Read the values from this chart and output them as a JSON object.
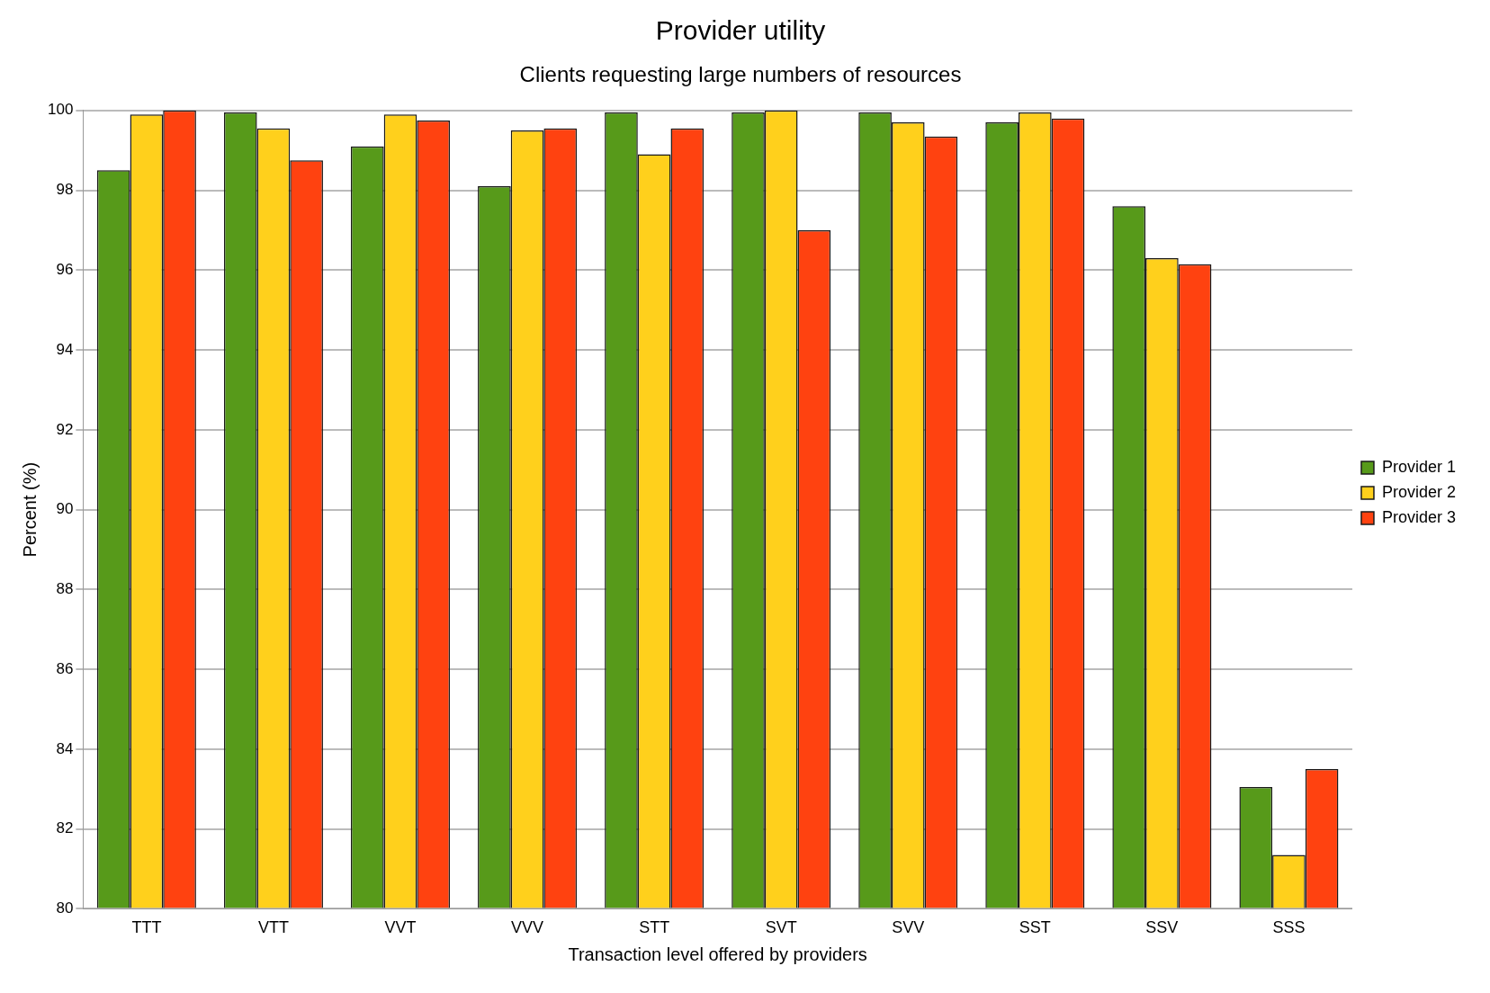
{
  "chart_data": {
    "type": "bar",
    "title": "Provider utility",
    "subtitle": "Clients requesting large numbers of resources",
    "xlabel": "Transaction level offered by providers",
    "ylabel": "Percent (%)",
    "categories": [
      "TTT",
      "VTT",
      "VVT",
      "VVV",
      "STT",
      "SVT",
      "SVV",
      "SST",
      "SSV",
      "SSS"
    ],
    "series": [
      {
        "name": "Provider 1",
        "color": "#579a1a",
        "values": [
          98.5,
          99.95,
          99.1,
          98.1,
          99.95,
          99.95,
          99.95,
          99.7,
          97.6,
          83.05
        ]
      },
      {
        "name": "Provider 2",
        "color": "#ffd01c",
        "values": [
          99.9,
          99.55,
          99.9,
          99.5,
          98.9,
          100,
          99.7,
          99.95,
          96.3,
          81.35
        ]
      },
      {
        "name": "Provider 3",
        "color": "#ff4210",
        "values": [
          100,
          98.75,
          99.75,
          99.55,
          99.55,
          97,
          99.35,
          99.8,
          96.15,
          83.5
        ]
      }
    ],
    "ylim": [
      80,
      100
    ],
    "yticks": [
      80,
      82,
      84,
      86,
      88,
      90,
      92,
      94,
      96,
      98,
      100
    ],
    "grid": "y",
    "legend": "right"
  }
}
